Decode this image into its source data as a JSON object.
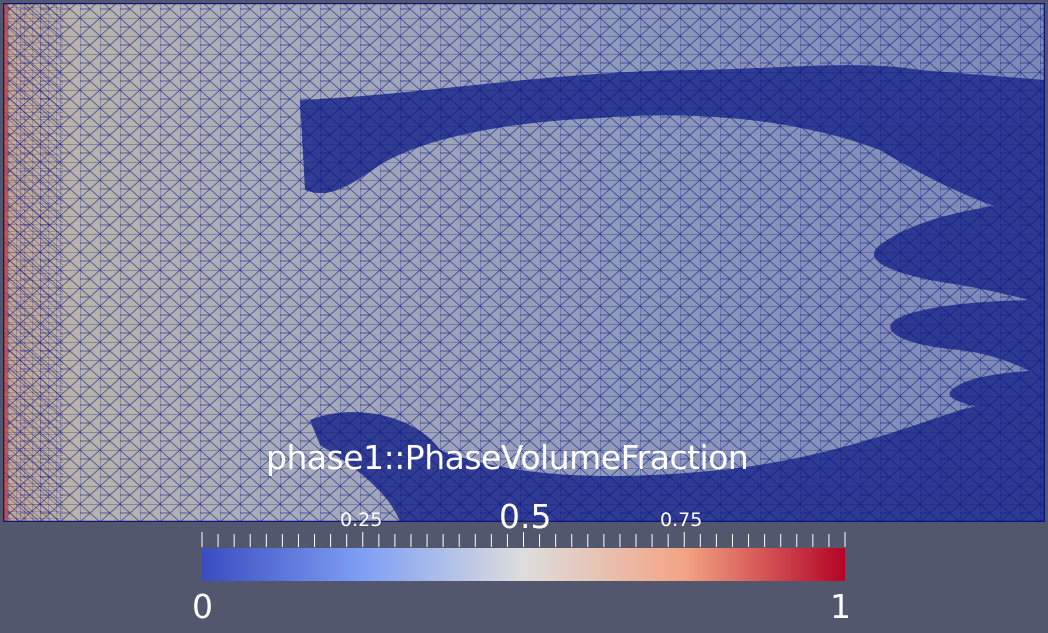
{
  "colorbar": {
    "title": "phase1::PhaseVolumeFraction",
    "tick_labels": {
      "t025": "0.25",
      "t05": "0.5",
      "t075": "0.75"
    },
    "range_labels": {
      "min": "0",
      "max": "1"
    },
    "range": [
      0,
      1
    ],
    "colormap": "Cool to Warm",
    "colors": {
      "low": "#3b4cc0",
      "mid": "#dddddd",
      "high": "#b40426"
    }
  },
  "scene": {
    "background": "#52576e",
    "mesh_edge_color": "#0a1580",
    "representation": "Surface With Edges"
  }
}
